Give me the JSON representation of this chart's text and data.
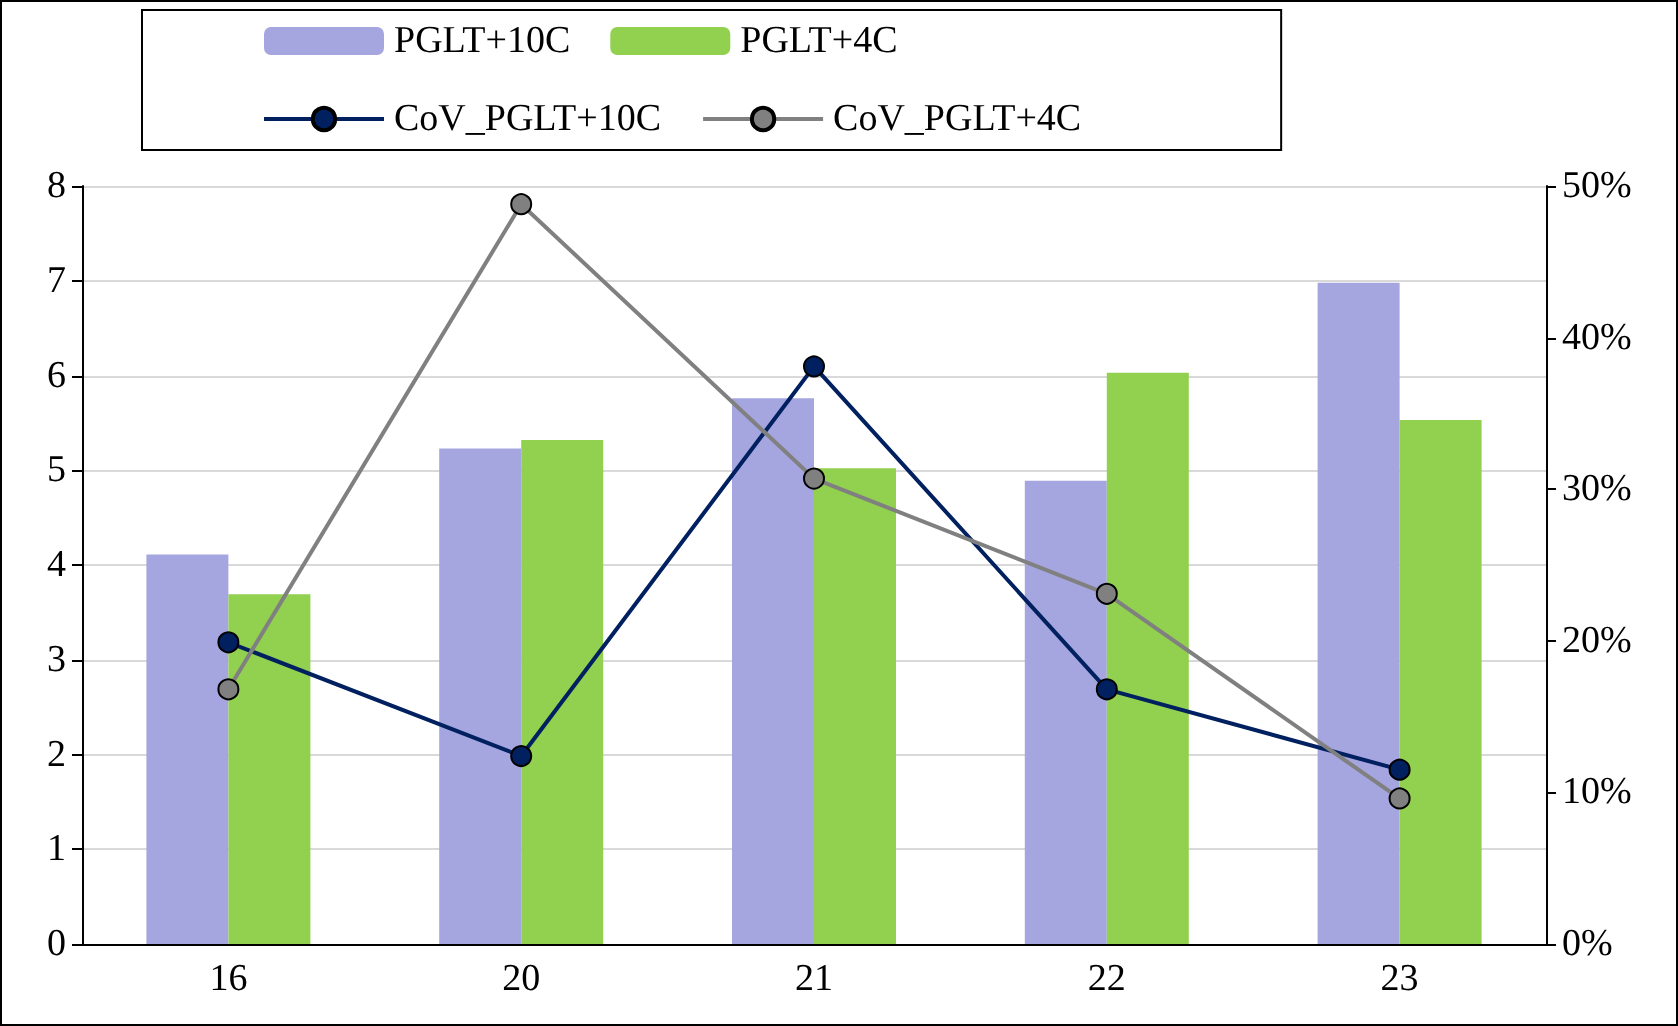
{
  "chart_data": {
    "type": "bar",
    "categories": [
      "16",
      "20",
      "21",
      "22",
      "23"
    ],
    "series": [
      {
        "name": "PGLT+10C",
        "color": "#a5a5e0",
        "values": [
          4.11,
          5.23,
          5.76,
          4.89,
          6.98
        ]
      },
      {
        "name": "PGLT+4C",
        "color": "#92d050",
        "values": [
          3.69,
          5.32,
          5.02,
          6.03,
          5.53
        ]
      },
      {
        "name": "CoV_PGLT+10C",
        "type": "line",
        "axis": "y2",
        "color": "#002060",
        "marker": "circle",
        "values": [
          19.9,
          12.4,
          38.1,
          16.8,
          11.5
        ]
      },
      {
        "name": "CoV_PGLT+4C",
        "type": "line",
        "axis": "y2",
        "color": "#808080",
        "marker": "circle",
        "values": [
          16.8,
          48.8,
          30.7,
          23.1,
          9.6
        ]
      }
    ],
    "ylim": [
      0,
      8
    ],
    "yticks": [
      0,
      1,
      2,
      3,
      4,
      5,
      6,
      7,
      8
    ],
    "y2lim": [
      0,
      50
    ],
    "y2ticks": [
      {
        "value": 0,
        "label": "0%"
      },
      {
        "value": 10,
        "label": "10%"
      },
      {
        "value": 20,
        "label": "20%"
      },
      {
        "value": 30,
        "label": "30%"
      },
      {
        "value": 40,
        "label": "40%"
      },
      {
        "value": 50,
        "label": "50%"
      }
    ],
    "grid": "y",
    "legend": "top"
  }
}
